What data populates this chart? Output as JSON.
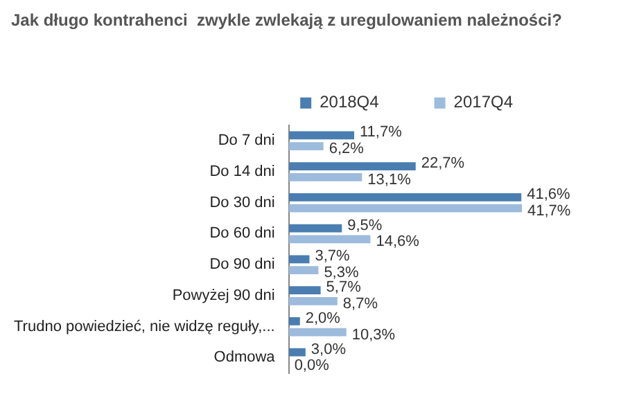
{
  "chart_data": {
    "type": "bar",
    "orientation": "horizontal",
    "title": "Jak długo kontrahenci  zwykle zwlekają z uregulowaniem należności?",
    "categories": [
      "Do 7 dni",
      "Do 14 dni",
      "Do 30 dni",
      "Do 60 dni",
      "Do 90 dni",
      "Powyżej 90 dni",
      "Trudno powiedzieć, nie widzę reguły,...",
      "Odmowa"
    ],
    "series": [
      {
        "name": "2018Q4",
        "color": "#4a7eb1",
        "values": [
          11.7,
          22.7,
          41.6,
          9.5,
          3.7,
          5.7,
          2.0,
          3.0
        ],
        "value_labels": [
          "11,7%",
          "22,7%",
          "41,6%",
          "9,5%",
          "3,7%",
          "5,7%",
          "2,0%",
          "3,0%"
        ]
      },
      {
        "name": "2017Q4",
        "color": "#9dbbdc",
        "values": [
          6.2,
          13.1,
          41.7,
          14.6,
          5.3,
          8.7,
          10.3,
          0.0
        ],
        "value_labels": [
          "6,2%",
          "13,1%",
          "41,7%",
          "14,6%",
          "5,3%",
          "8,7%",
          "10,3%",
          "0,0%"
        ]
      }
    ],
    "legend": "top"
  }
}
